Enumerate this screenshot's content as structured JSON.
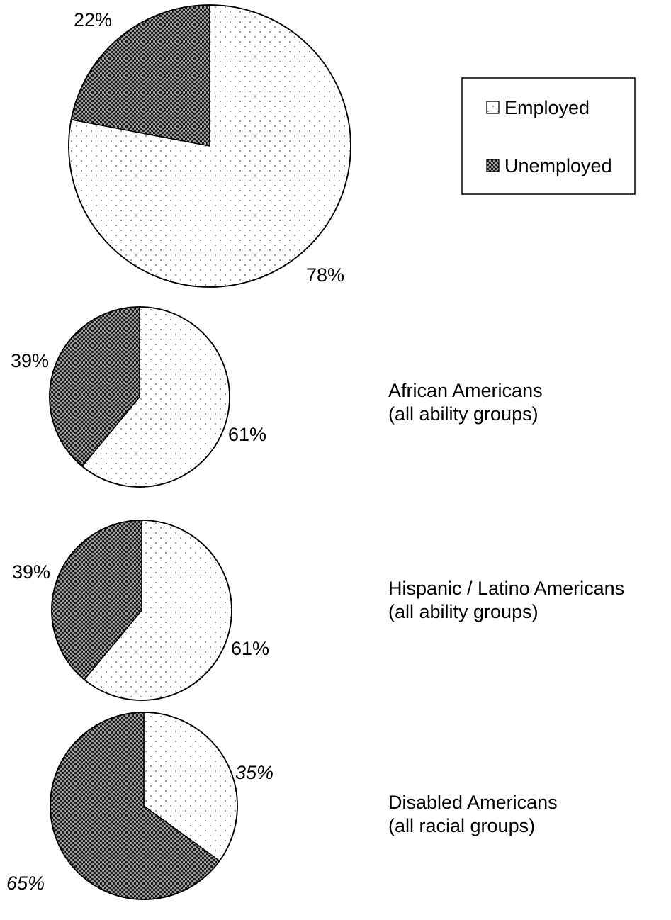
{
  "chart_data": [
    {
      "type": "pie",
      "categories": [
        "Employed",
        "Unemployed"
      ],
      "values": [
        78,
        22
      ],
      "data_labels": [
        "78%",
        "22%"
      ],
      "group_label": [
        "",
        ""
      ],
      "italic_labels": false
    },
    {
      "type": "pie",
      "categories": [
        "Employed",
        "Unemployed"
      ],
      "values": [
        61,
        39
      ],
      "data_labels": [
        "61%",
        "39%"
      ],
      "group_label": [
        "African Americans",
        "(all ability groups)"
      ],
      "italic_labels": false
    },
    {
      "type": "pie",
      "categories": [
        "Employed",
        "Unemployed"
      ],
      "values": [
        61,
        39
      ],
      "data_labels": [
        "61%",
        "39%"
      ],
      "group_label": [
        "Hispanic / Latino Americans",
        "(all ability groups)"
      ],
      "italic_labels": false
    },
    {
      "type": "pie",
      "categories": [
        "Employed",
        "Unemployed"
      ],
      "values": [
        35,
        65
      ],
      "data_labels": [
        "35%",
        "65%"
      ],
      "group_label": [
        "Disabled Americans",
        "(all racial groups)"
      ],
      "italic_labels": true
    }
  ],
  "legend": {
    "placement": "top-right",
    "items": [
      {
        "name": "Employed",
        "pattern": "dots"
      },
      {
        "name": "Unemployed",
        "pattern": "checker"
      }
    ]
  },
  "colors": {
    "employed_fill": "#ffffff",
    "employed_dot": "#555555",
    "unemployed_dark": "#1e1e1e",
    "unemployed_light": "#9a9a9a",
    "outline": "#000000"
  }
}
